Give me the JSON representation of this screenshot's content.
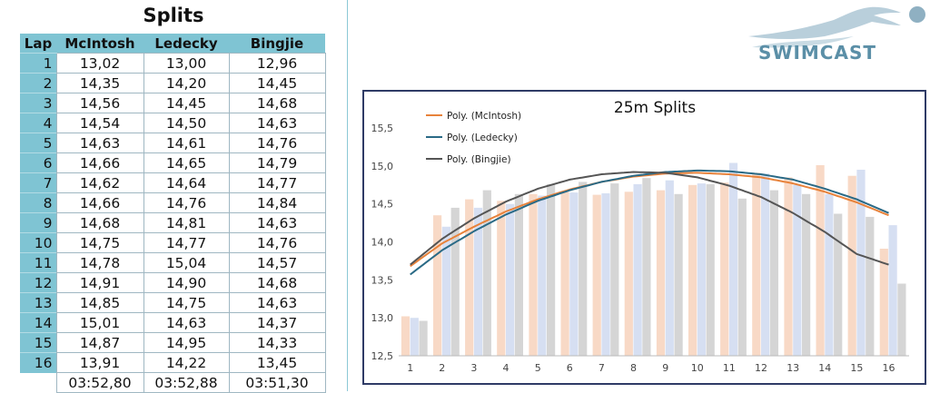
{
  "table": {
    "title": "Splits",
    "headers": [
      "Lap",
      "McIntosh",
      "Ledecky",
      "Bingjie"
    ],
    "rows": [
      [
        "1",
        "13,02",
        "13,00",
        "12,96"
      ],
      [
        "2",
        "14,35",
        "14,20",
        "14,45"
      ],
      [
        "3",
        "14,56",
        "14,45",
        "14,68"
      ],
      [
        "4",
        "14,54",
        "14,50",
        "14,63"
      ],
      [
        "5",
        "14,63",
        "14,61",
        "14,76"
      ],
      [
        "6",
        "14,66",
        "14,65",
        "14,79"
      ],
      [
        "7",
        "14,62",
        "14,64",
        "14,77"
      ],
      [
        "8",
        "14,66",
        "14,76",
        "14,84"
      ],
      [
        "9",
        "14,68",
        "14,81",
        "14,63"
      ],
      [
        "10",
        "14,75",
        "14,77",
        "14,76"
      ],
      [
        "11",
        "14,78",
        "15,04",
        "14,57"
      ],
      [
        "12",
        "14,91",
        "14,90",
        "14,68"
      ],
      [
        "13",
        "14,85",
        "14,75",
        "14,63"
      ],
      [
        "14",
        "15,01",
        "14,63",
        "14,37"
      ],
      [
        "15",
        "14,87",
        "14,95",
        "14,33"
      ],
      [
        "16",
        "13,91",
        "14,22",
        "13,45"
      ]
    ],
    "totals": [
      "",
      "03:52,80",
      "03:52,88",
      "03:51,30"
    ]
  },
  "logo": {
    "text": "SWIMCAST",
    "icon": "swimmer-icon"
  },
  "chart_data": {
    "type": "bar",
    "title": "25m Splits",
    "categories": [
      "1",
      "2",
      "3",
      "4",
      "5",
      "6",
      "7",
      "8",
      "9",
      "10",
      "11",
      "12",
      "13",
      "14",
      "15",
      "16"
    ],
    "ylim": [
      12.5,
      15.5
    ],
    "yticks": [
      "12,5",
      "13,0",
      "13,5",
      "14,0",
      "14,5",
      "15,0",
      "15,5"
    ],
    "series": [
      {
        "name": "McIntosh",
        "color": "#f8d9c6",
        "values": [
          13.02,
          14.35,
          14.56,
          14.54,
          14.63,
          14.66,
          14.62,
          14.66,
          14.68,
          14.75,
          14.78,
          14.91,
          14.85,
          15.01,
          14.87,
          13.91
        ]
      },
      {
        "name": "Ledecky",
        "color": "#d6dff2",
        "values": [
          13.0,
          14.2,
          14.45,
          14.5,
          14.61,
          14.65,
          14.64,
          14.76,
          14.81,
          14.77,
          15.04,
          14.9,
          14.75,
          14.63,
          14.95,
          14.22
        ]
      },
      {
        "name": "Bingjie",
        "color": "#d5d5d5",
        "values": [
          12.96,
          14.45,
          14.68,
          14.63,
          14.76,
          14.79,
          14.77,
          14.84,
          14.63,
          14.76,
          14.57,
          14.68,
          14.63,
          14.37,
          14.33,
          13.45
        ]
      }
    ],
    "trendlines": [
      {
        "label": "Poly. (McIntosh)",
        "color": "#e8823a",
        "values": [
          13.68,
          13.98,
          14.2,
          14.4,
          14.56,
          14.69,
          14.79,
          14.86,
          14.9,
          14.91,
          14.89,
          14.85,
          14.77,
          14.66,
          14.52,
          14.35
        ]
      },
      {
        "label": "Poly. (Ledecky)",
        "color": "#2a6a86",
        "values": [
          13.57,
          13.89,
          14.14,
          14.36,
          14.54,
          14.68,
          14.79,
          14.87,
          14.92,
          14.94,
          14.93,
          14.89,
          14.82,
          14.7,
          14.56,
          14.38
        ]
      },
      {
        "label": "Poly. (Bingjie)",
        "color": "#555555",
        "values": [
          13.7,
          14.04,
          14.31,
          14.53,
          14.7,
          14.82,
          14.89,
          14.92,
          14.91,
          14.85,
          14.74,
          14.59,
          14.38,
          14.13,
          13.84,
          13.7
        ]
      }
    ],
    "legend": "top-left",
    "grid": false
  }
}
